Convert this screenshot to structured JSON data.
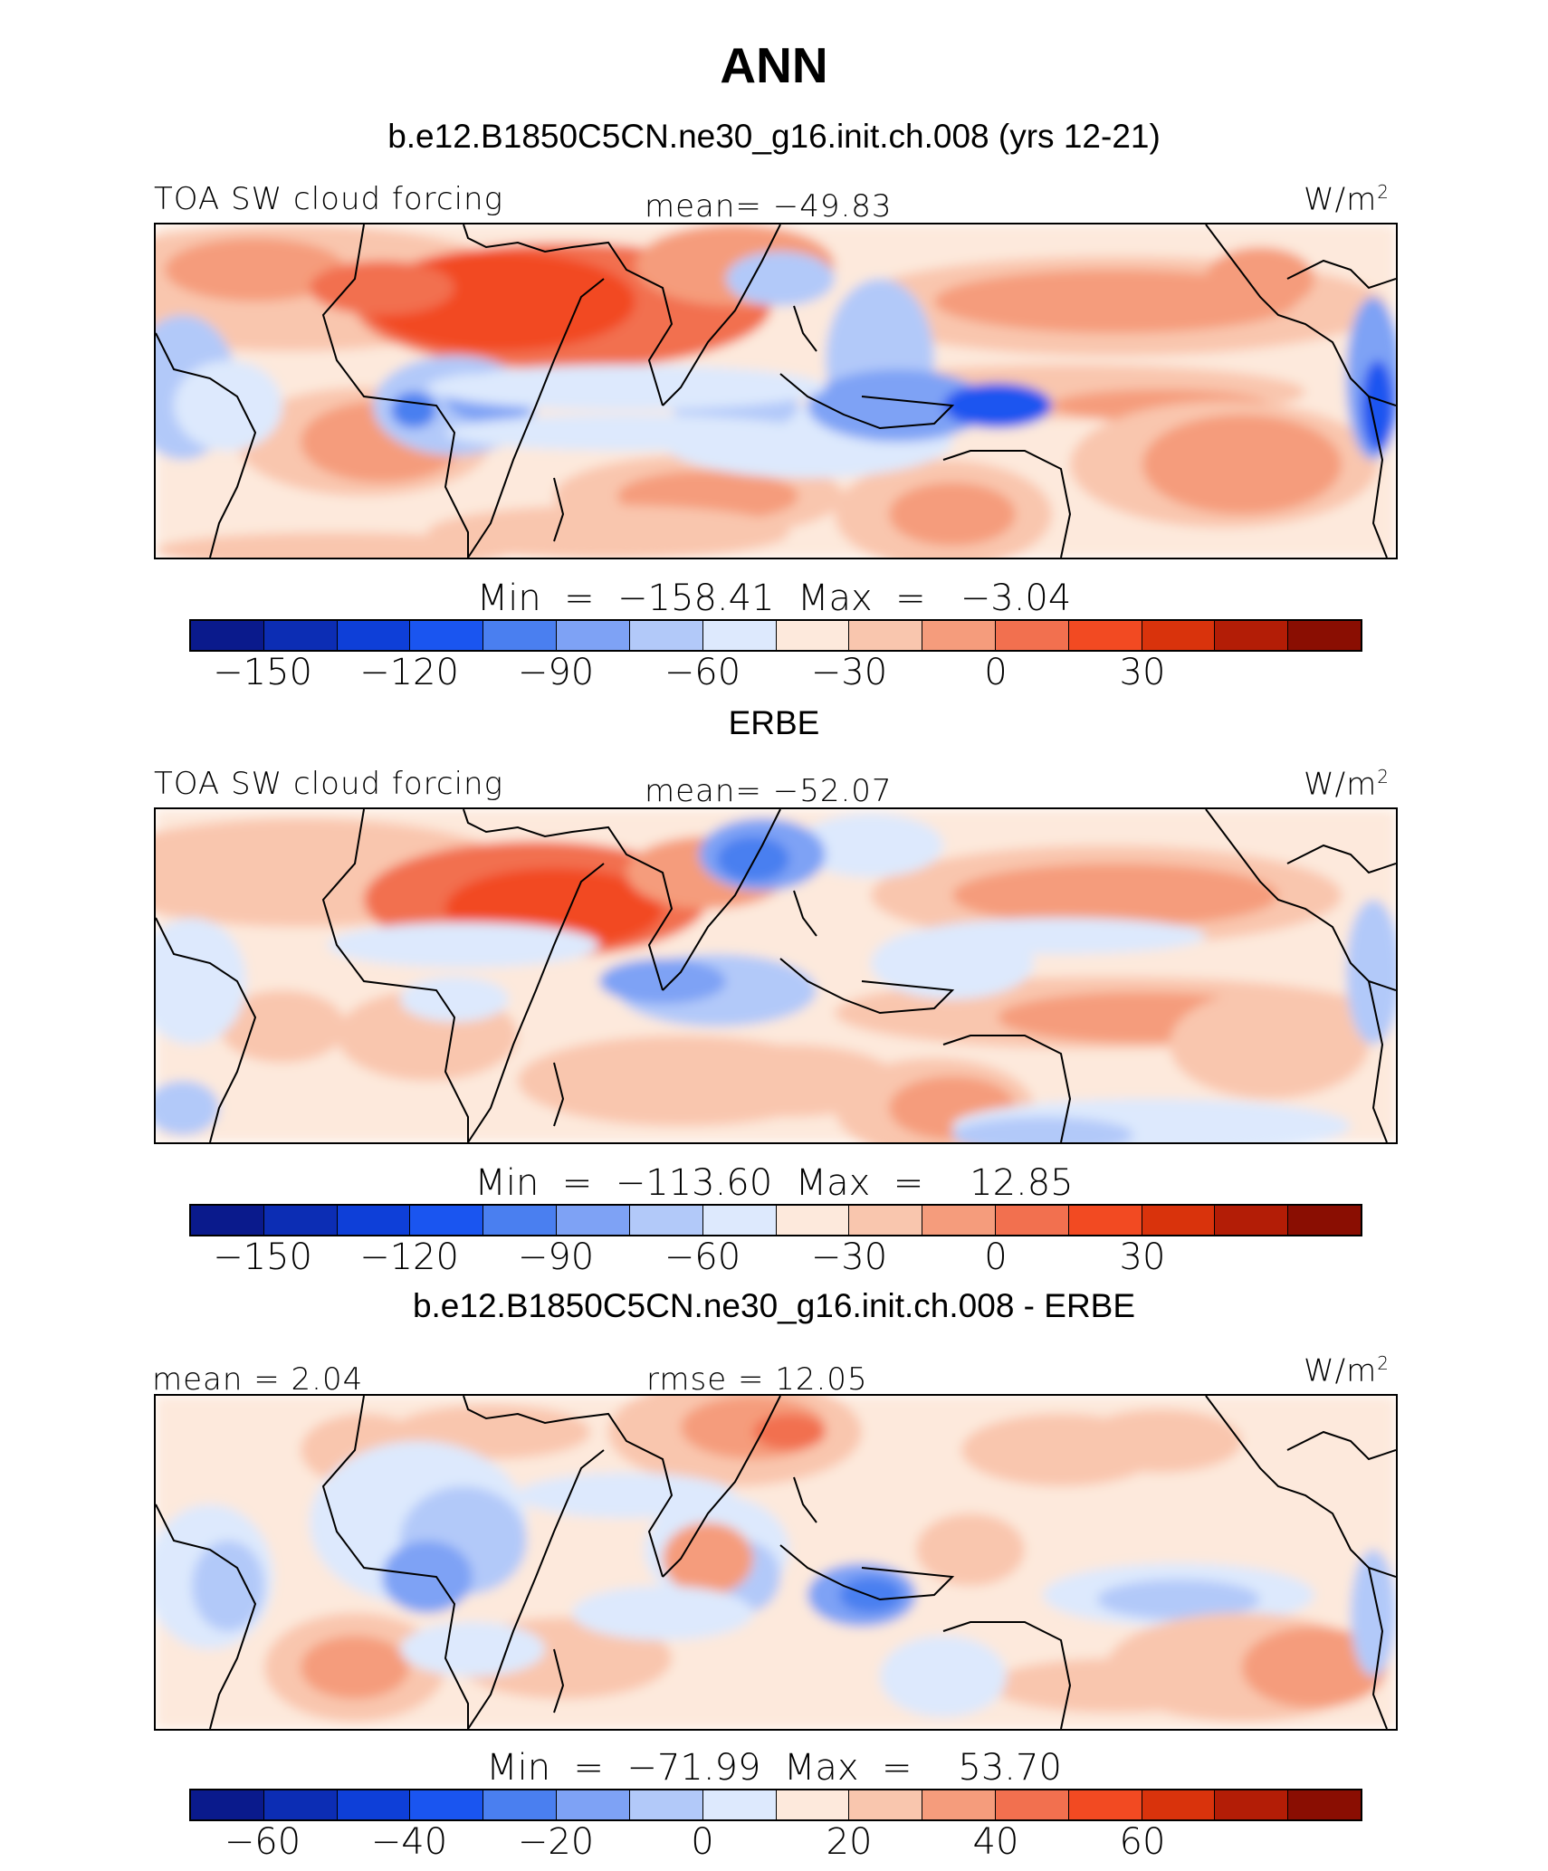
{
  "title": "ANN",
  "colormap": [
    "#0a1a8c",
    "#0c2db4",
    "#0e3fd8",
    "#1a55f0",
    "#4a7ff0",
    "#7ea2f5",
    "#b2c9f9",
    "#dde9fd",
    "#fde9dc",
    "#f9c6ae",
    "#f59c7c",
    "#f2704f",
    "#f24a22",
    "#d9330c",
    "#b31d06",
    "#8a0e02"
  ],
  "panels": [
    {
      "id": "model",
      "title": "b.e12.B1850C5CN.ne30_g16.init.ch.008 (yrs 12-21)",
      "left_label": "TOA SW cloud forcing",
      "center_label": "mean=  −49.83",
      "units": "W/m",
      "units_sup": "2",
      "min_max": "Min  =  −158.41  Max  =   −3.04",
      "colorbar_ticks": [
        "−150",
        "−120",
        "−90",
        "−60",
        "−30",
        "0",
        "30"
      ]
    },
    {
      "id": "obs",
      "title": "ERBE",
      "left_label": "TOA SW cloud forcing",
      "center_label": "mean=  −52.07",
      "units": "W/m",
      "units_sup": "2",
      "min_max": "Min  =  −113.60  Max  =    12.85",
      "colorbar_ticks": [
        "−150",
        "−120",
        "−90",
        "−60",
        "−30",
        "0",
        "30"
      ]
    },
    {
      "id": "diff",
      "title": "b.e12.B1850C5CN.ne30_g16.init.ch.008 - ERBE",
      "left_label": "mean  =    2.04",
      "center_label": "rmse  =   12.05",
      "units": "W/m",
      "units_sup": "2",
      "min_max": "Min  =  −71.99  Max  =    53.70",
      "colorbar_ticks": [
        "−60",
        "−40",
        "−20",
        "0",
        "20",
        "40",
        "60"
      ]
    }
  ]
}
